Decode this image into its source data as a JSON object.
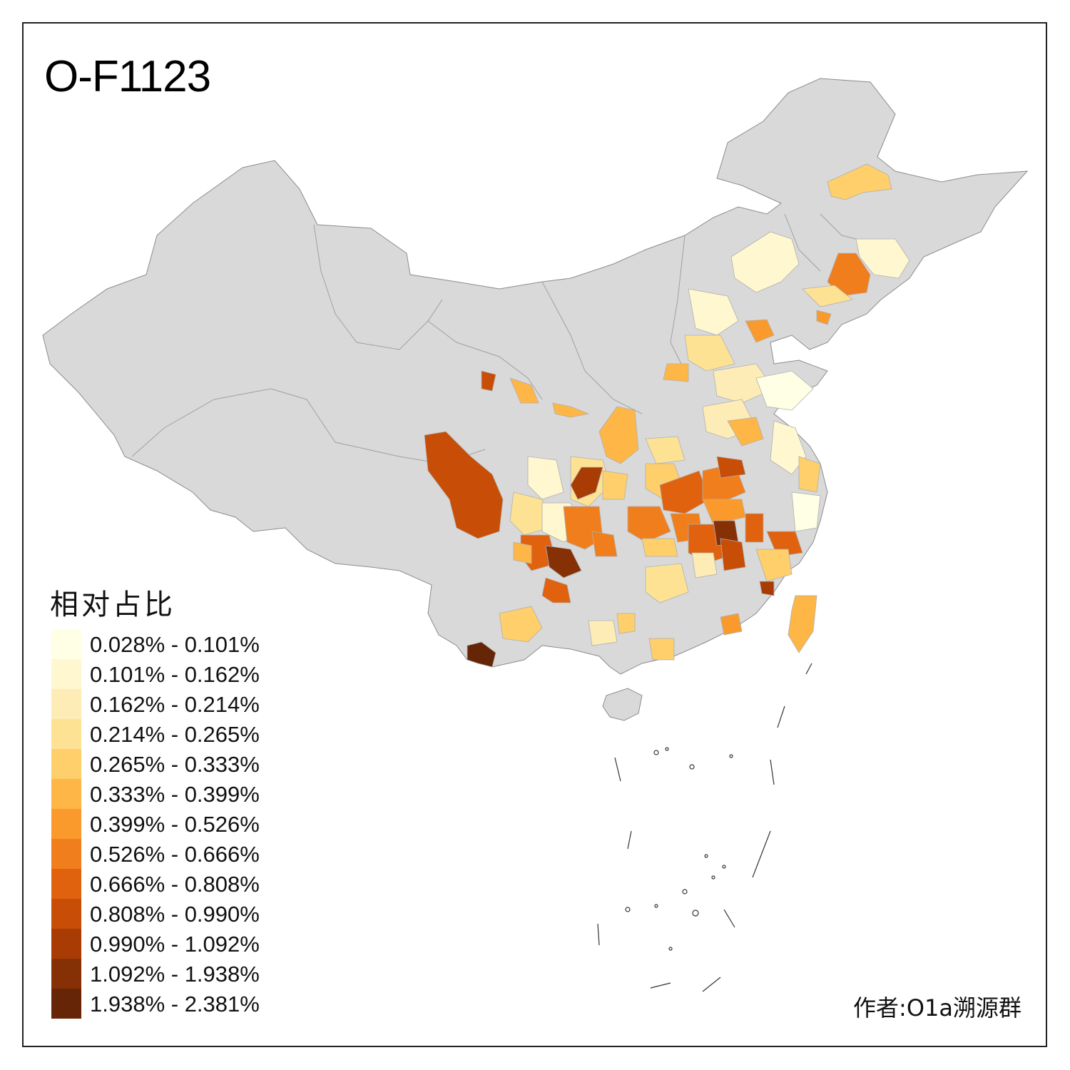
{
  "title": "O-F1123",
  "legend": {
    "title": "相对占比",
    "items": [
      {
        "label": "0.028% - 0.101%",
        "color": "#ffffe5"
      },
      {
        "label": "0.101% - 0.162%",
        "color": "#fff7cf"
      },
      {
        "label": "0.162% - 0.214%",
        "color": "#feecb6"
      },
      {
        "label": "0.214% - 0.265%",
        "color": "#fee294"
      },
      {
        "label": "0.265% - 0.333%",
        "color": "#fecf6a"
      },
      {
        "label": "0.333% - 0.399%",
        "color": "#feb646"
      },
      {
        "label": "0.399% - 0.526%",
        "color": "#fb9a2c"
      },
      {
        "label": "0.526% - 0.666%",
        "color": "#f07e1c"
      },
      {
        "label": "0.666% - 0.808%",
        "color": "#e0620f"
      },
      {
        "label": "0.808% - 0.990%",
        "color": "#c84d06"
      },
      {
        "label": "0.990% - 1.092%",
        "color": "#a83c04"
      },
      {
        "label": "1.092% - 1.938%",
        "color": "#863005"
      },
      {
        "label": "1.938% - 2.381%",
        "color": "#662506"
      }
    ]
  },
  "author": "作者:O1a溯源群",
  "colors": {
    "land": "#d9d9d9",
    "border": "#8c8c8c",
    "frame": "#222222"
  }
}
